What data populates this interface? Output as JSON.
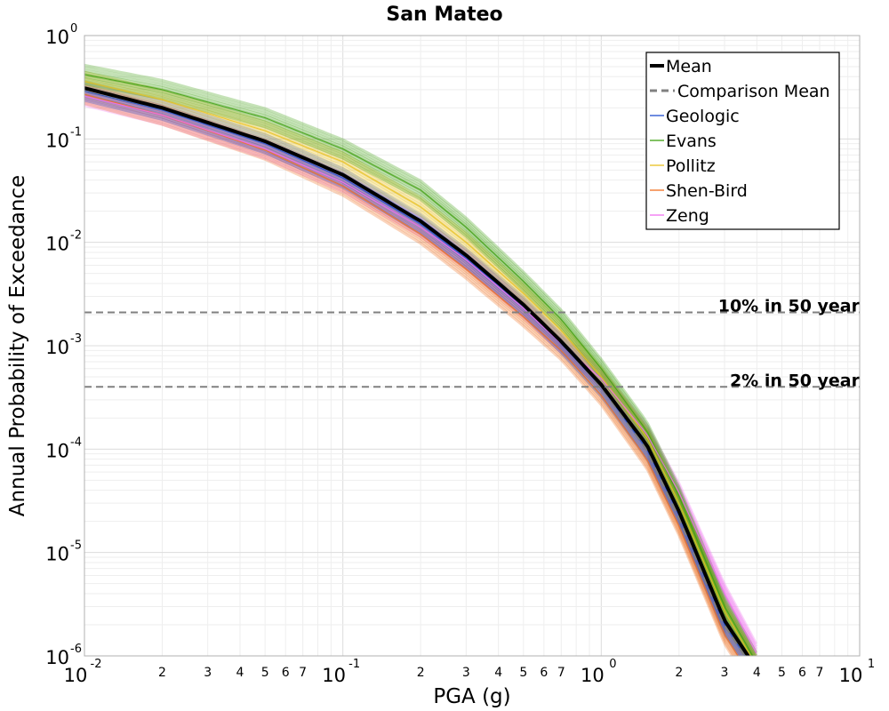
{
  "chart_data": {
    "type": "line",
    "title": "San Mateo",
    "xlabel": "PGA (g)",
    "ylabel": "Annual Probability of Exceedance",
    "xscale": "log",
    "yscale": "log",
    "xlim": [
      0.01,
      10
    ],
    "ylim": [
      1e-06,
      1
    ],
    "grid": true,
    "legend_position": "top-right",
    "x_major_ticks": [
      {
        "base": "10",
        "exp": "-2"
      },
      {
        "base": "10",
        "exp": "-1"
      },
      {
        "base": "10",
        "exp": "0"
      },
      {
        "base": "10",
        "exp": "1"
      }
    ],
    "x_minor_tick_labels": [
      "2",
      "3",
      "4",
      "5",
      "6",
      "7"
    ],
    "y_major_ticks": [
      {
        "base": "10",
        "exp": "0"
      },
      {
        "base": "10",
        "exp": "-1"
      },
      {
        "base": "10",
        "exp": "-2"
      },
      {
        "base": "10",
        "exp": "-3"
      },
      {
        "base": "10",
        "exp": "-4"
      },
      {
        "base": "10",
        "exp": "-5"
      },
      {
        "base": "10",
        "exp": "-6"
      }
    ],
    "x": [
      0.01,
      0.02,
      0.05,
      0.1,
      0.2,
      0.3,
      0.5,
      0.7,
      1.0,
      1.5,
      2.0,
      3.0,
      3.7
    ],
    "series": [
      {
        "name": "Mean",
        "color": "#000000",
        "style": "solid",
        "values": [
          0.31,
          0.2,
          0.095,
          0.045,
          0.016,
          0.0075,
          0.0025,
          0.0011,
          0.00042,
          0.00011,
          2.5e-05,
          2.2e-06,
          1e-06
        ]
      },
      {
        "name": "Comparison Mean",
        "color": "#808080",
        "style": "dashed",
        "values": [
          0.31,
          0.2,
          0.095,
          0.045,
          0.016,
          0.0075,
          0.0025,
          0.0011,
          0.0004,
          0.0001,
          2.2e-05,
          2e-06,
          9e-07
        ]
      },
      {
        "name": "Geologic",
        "color": "#1f4fd0",
        "style": "solid",
        "values": [
          0.29,
          0.19,
          0.09,
          0.042,
          0.015,
          0.007,
          0.0024,
          0.00105,
          0.0004,
          0.0001,
          2.3e-05,
          2e-06,
          9e-07
        ]
      },
      {
        "name": "Evans",
        "color": "#3fa010",
        "style": "solid",
        "values": [
          0.42,
          0.3,
          0.16,
          0.08,
          0.032,
          0.014,
          0.0042,
          0.0018,
          0.0006,
          0.00015,
          3.5e-05,
          3e-06,
          1.2e-06
        ]
      },
      {
        "name": "Pollitz",
        "color": "#e8c020",
        "style": "solid",
        "values": [
          0.36,
          0.24,
          0.12,
          0.06,
          0.022,
          0.01,
          0.0032,
          0.0014,
          0.0005,
          0.00013,
          3e-05,
          2.7e-06,
          1.1e-06
        ]
      },
      {
        "name": "Shen-Bird",
        "color": "#f07020",
        "style": "solid",
        "values": [
          0.27,
          0.17,
          0.078,
          0.035,
          0.012,
          0.0055,
          0.0019,
          0.0009,
          0.00033,
          8e-05,
          1.8e-05,
          1.6e-06,
          7e-07
        ]
      },
      {
        "name": "Zeng",
        "color": "#f070f0",
        "style": "solid",
        "values": [
          0.26,
          0.17,
          0.08,
          0.038,
          0.014,
          0.0068,
          0.0023,
          0.00105,
          0.00048,
          0.00014,
          3.8e-05,
          4e-06,
          1.5e-06
        ]
      }
    ],
    "reference_lines": [
      {
        "label": "10% in 50 year",
        "y": 0.0021
      },
      {
        "label": "2% in 50 year",
        "y": 0.0004
      }
    ]
  }
}
